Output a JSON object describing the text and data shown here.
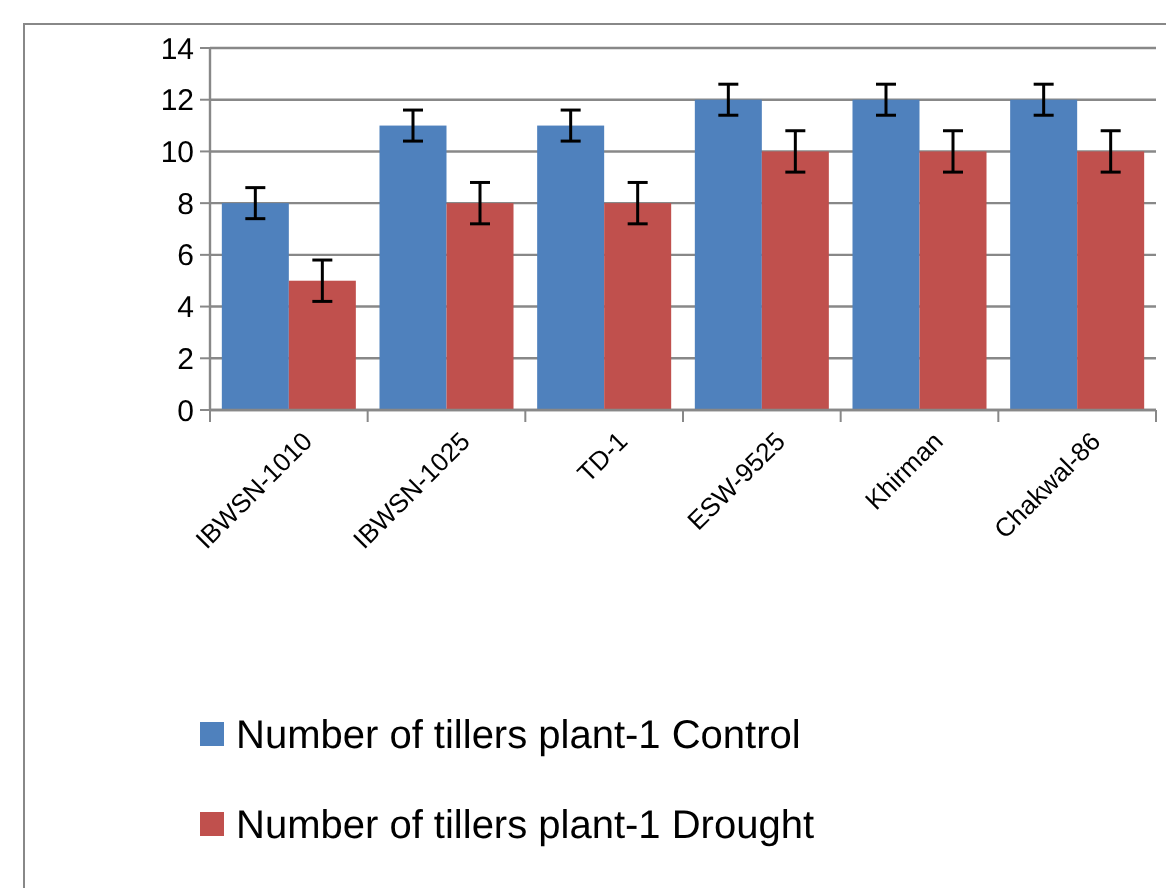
{
  "chart_data": {
    "type": "bar",
    "categories": [
      "IBWSN-1010",
      "IBWSN-1025",
      "TD-1",
      "ESW-9525",
      "Khirman",
      "Chakwal-86"
    ],
    "series": [
      {
        "name": "Number of tillers plant-1 Control",
        "color": "#4f81bd",
        "values": [
          8,
          11,
          11,
          12,
          12,
          12
        ],
        "errors": [
          0.6,
          0.6,
          0.6,
          0.6,
          0.6,
          0.6
        ]
      },
      {
        "name": "Number of tillers plant-1 Drought",
        "color": "#c0504d",
        "values": [
          5,
          8,
          8,
          10,
          10,
          10
        ],
        "errors": [
          0.8,
          0.8,
          0.8,
          0.8,
          0.8,
          0.8
        ]
      }
    ],
    "ylim": [
      0,
      14
    ],
    "yticks": [
      0,
      2,
      4,
      6,
      8,
      10,
      12,
      14
    ],
    "grid": "y",
    "legend": "bottom"
  }
}
